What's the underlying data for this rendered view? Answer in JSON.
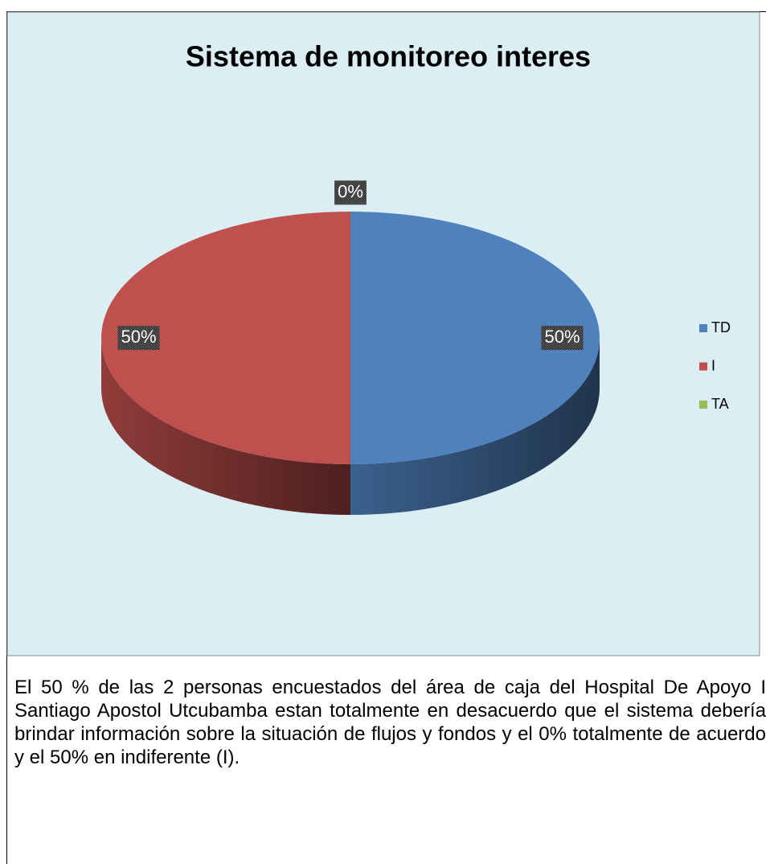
{
  "chart_data": {
    "type": "pie",
    "title": "Sistema de monitoreo interes",
    "categories": [
      "TD",
      "I",
      "TA"
    ],
    "values": [
      50,
      50,
      0
    ],
    "value_labels": [
      "50%",
      "50%",
      "0%"
    ],
    "colors": [
      "#4f81bd",
      "#c0504d",
      "#9bbb59"
    ],
    "legend": "right",
    "three_d": true
  },
  "paragraph": "El 50 % de las 2 personas encuestados del área de caja del Hospital De Apoyo I Santiago Apostol Utcubamba estan totalmente en desacuerdo que el sistema debería brindar información sobre la situación de flujos y fondos y el 0% totalmente de acuerdo y el 50% en indiferente (I)."
}
